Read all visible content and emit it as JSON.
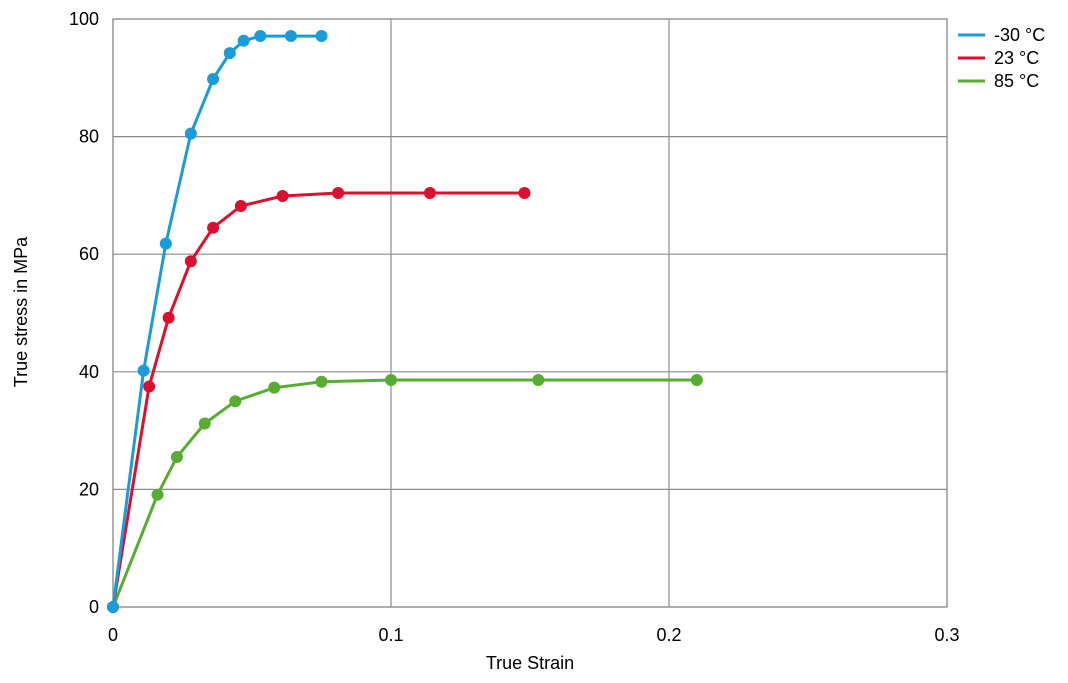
{
  "chart_data": {
    "type": "line",
    "xlabel": "True Strain",
    "ylabel": "True stress in  MPa",
    "xlim": [
      0,
      0.3
    ],
    "ylim": [
      0,
      100
    ],
    "xticks": [
      0,
      0.1,
      0.2,
      0.3
    ],
    "xtick_labels": [
      "0",
      "0.1",
      "0.2",
      "0.3"
    ],
    "yticks": [
      0,
      20,
      40,
      60,
      80,
      100
    ],
    "ytick_labels": [
      "0",
      "20",
      "40",
      "60",
      "80",
      "100"
    ],
    "grid": true,
    "legend_position": "right",
    "series": [
      {
        "name": "-30 °C",
        "color": "#1a9cd8",
        "points": [
          [
            0,
            0
          ],
          [
            0.011,
            40.2
          ],
          [
            0.019,
            61.8
          ],
          [
            0.028,
            80.5
          ],
          [
            0.036,
            89.8
          ],
          [
            0.042,
            94.2
          ],
          [
            0.047,
            96.3
          ],
          [
            0.053,
            97.1
          ],
          [
            0.064,
            97.1
          ],
          [
            0.075,
            97.1
          ]
        ]
      },
      {
        "name": "23 °C",
        "color": "#dd0f2f",
        "points": [
          [
            0,
            0
          ],
          [
            0.013,
            37.5
          ],
          [
            0.02,
            49.2
          ],
          [
            0.028,
            58.8
          ],
          [
            0.036,
            64.5
          ],
          [
            0.046,
            68.2
          ],
          [
            0.061,
            69.9
          ],
          [
            0.081,
            70.4
          ],
          [
            0.114,
            70.4
          ],
          [
            0.148,
            70.4
          ]
        ]
      },
      {
        "name": "85 °C",
        "color": "#56ad31",
        "points": [
          [
            0,
            0
          ],
          [
            0.016,
            19.1
          ],
          [
            0.023,
            25.5
          ],
          [
            0.033,
            31.2
          ],
          [
            0.044,
            35.0
          ],
          [
            0.058,
            37.3
          ],
          [
            0.075,
            38.3
          ],
          [
            0.1,
            38.6
          ],
          [
            0.153,
            38.6
          ],
          [
            0.21,
            38.6
          ]
        ]
      }
    ]
  }
}
